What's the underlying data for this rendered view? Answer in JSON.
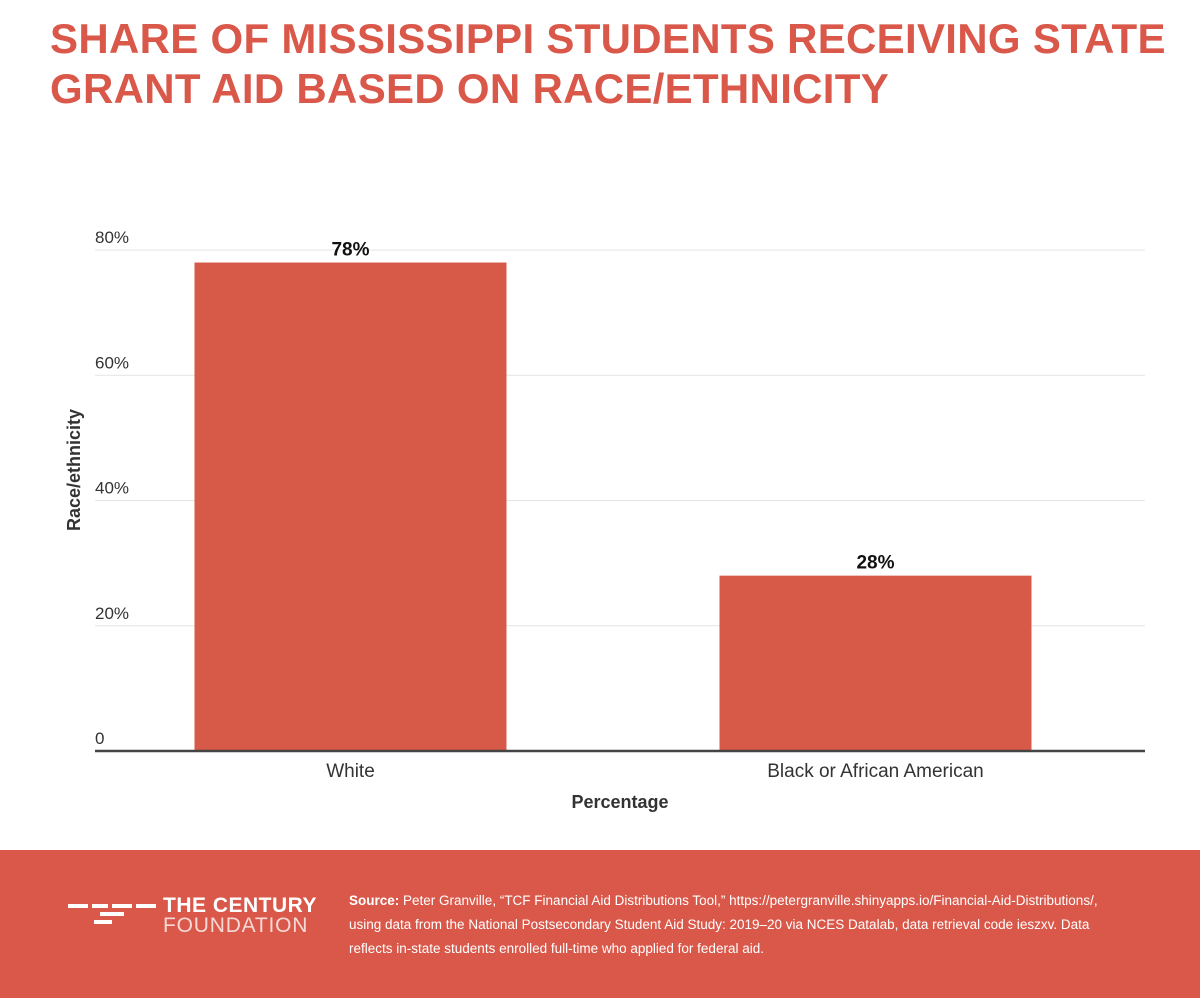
{
  "title_lines": [
    "SHARE OF MISSISSIPPI STUDENTS RECEIVING STATE",
    "GRANT AID BASED ON RACE/ETHNICITY"
  ],
  "chart_data": {
    "type": "bar",
    "categories": [
      "White",
      "Black or African American"
    ],
    "values": [
      78,
      28
    ],
    "value_labels": [
      "78%",
      "28%"
    ],
    "xlabel": "Percentage",
    "ylabel": "Race/ethnicity",
    "ylim": [
      0,
      80
    ],
    "yticks": [
      0,
      20,
      40,
      60,
      80
    ],
    "ytick_labels": [
      "0",
      "20%",
      "40%",
      "60%",
      "80%"
    ],
    "grid": true
  },
  "footer": {
    "logo_line1": "THE CENTURY",
    "logo_line2": "FOUNDATION",
    "source_label": "Source:",
    "source_text": "Peter Granville, “TCF Financial Aid Distributions Tool,” https://petergranville.shinyapps.io/Financial-Aid-Distributions/, using data from the National Postsecondary Student Aid Study: 2019–20 via NCES Datalab, data retrieval code ieszxv. Data reflects in-state students enrolled full-time who applied for federal aid."
  },
  "colors": {
    "accent": "#d9584a",
    "bar": "#d65a47",
    "grid": "#e4e4e4",
    "axis": "#444444",
    "text": "#333333"
  }
}
